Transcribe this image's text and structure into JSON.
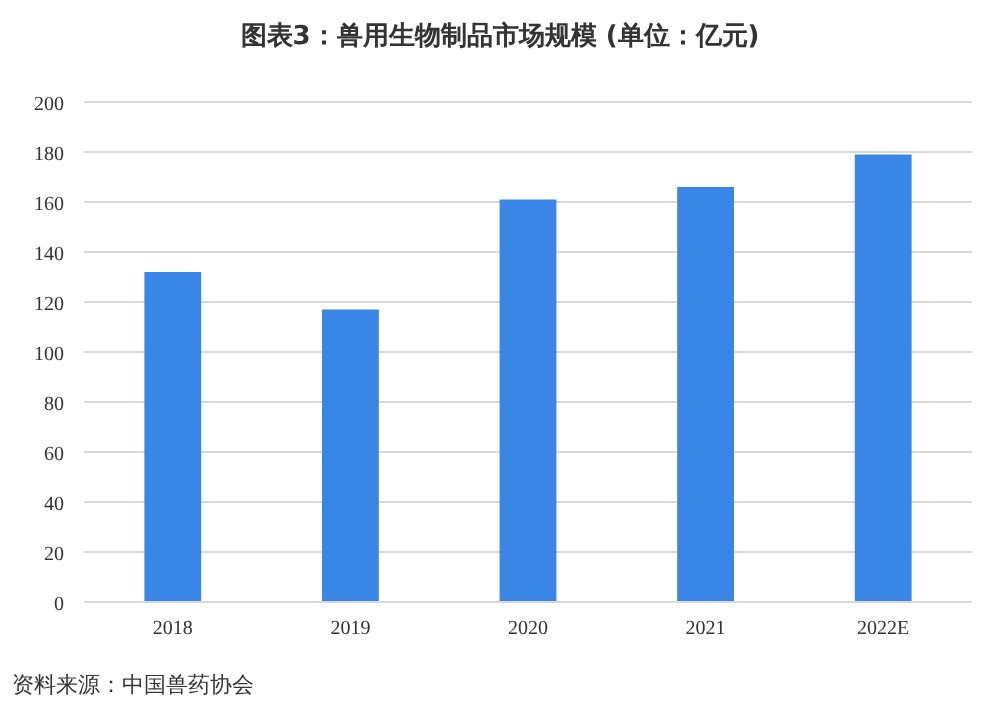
{
  "chart_data": {
    "type": "bar",
    "title": "图表3：兽用生物制品市场规模 (单位：亿元)",
    "categories": [
      "2018",
      "2019",
      "2020",
      "2021",
      "2022E"
    ],
    "values": [
      132,
      117,
      161,
      166,
      179
    ],
    "color": "#3a86e6",
    "ylim": [
      0,
      200
    ],
    "yticks": [
      0,
      20,
      40,
      60,
      80,
      100,
      120,
      140,
      160,
      180,
      200
    ],
    "grid": "y",
    "annotations": [
      "资料来源：中国兽药协会"
    ]
  }
}
